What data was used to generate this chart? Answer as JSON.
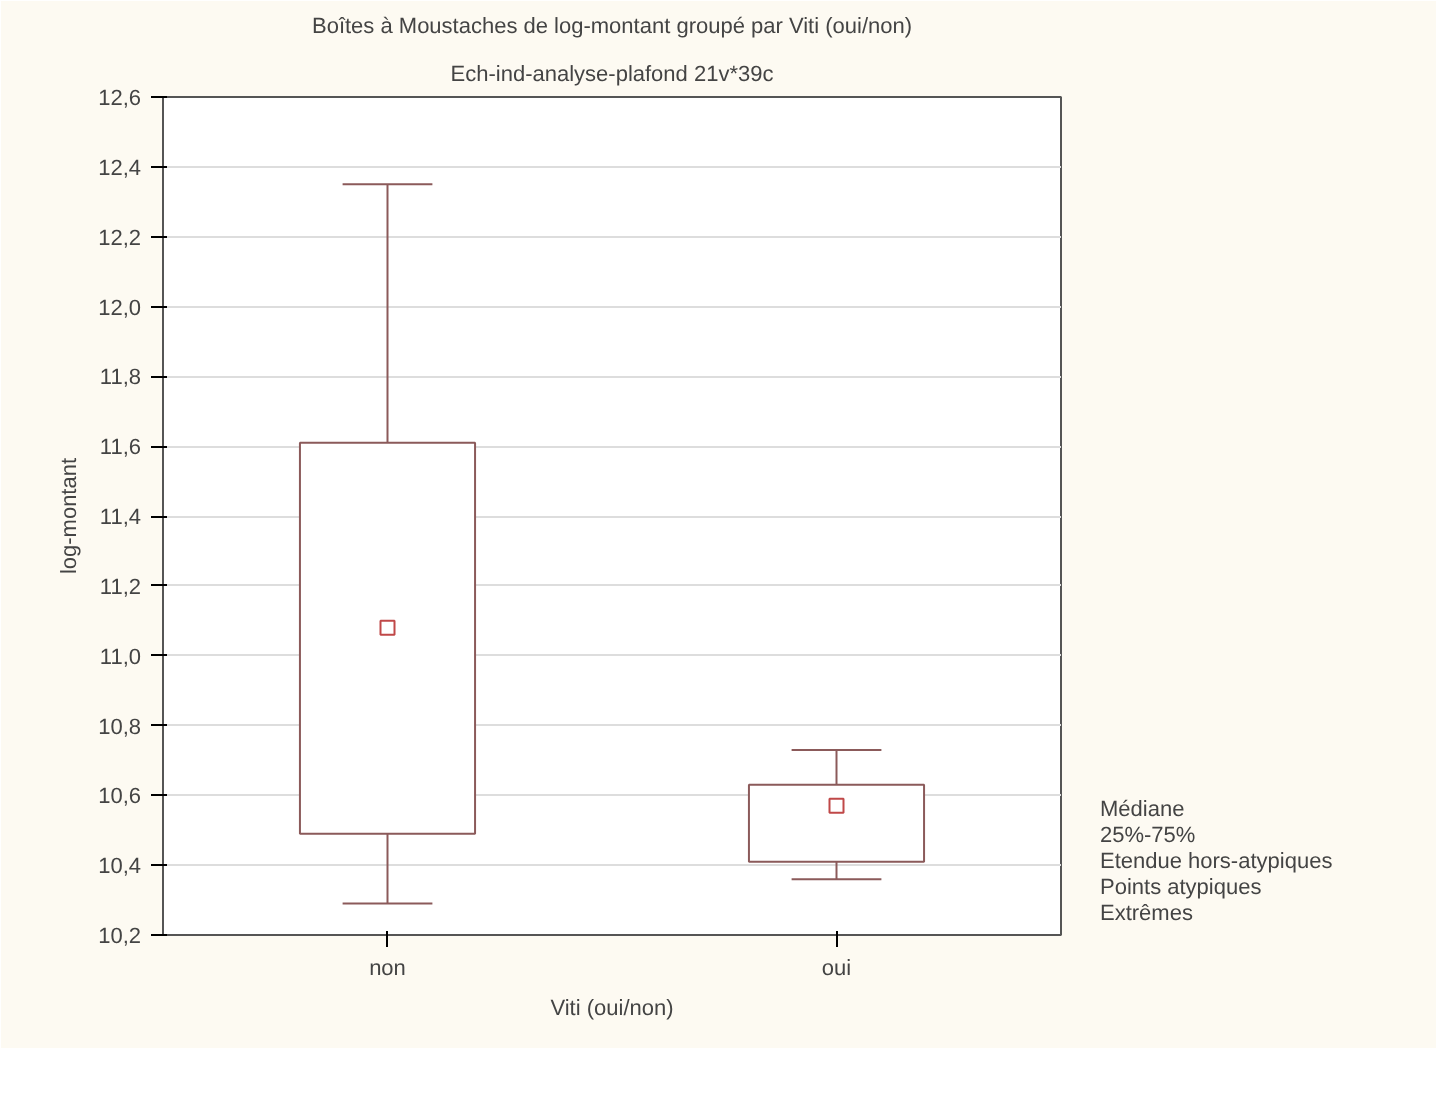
{
  "chart_data": {
    "type": "box",
    "title": "Boîtes à Moustaches de log-montant groupé par Viti (oui/non)",
    "subtitle": "Ech-ind-analyse-plafond 21v*39c",
    "xlabel": "Viti (oui/non)",
    "ylabel": "log-montant",
    "categories": [
      "non",
      "oui"
    ],
    "boxes": [
      {
        "low": 10.29,
        "q1": 10.49,
        "median": 11.08,
        "q3": 11.61,
        "high": 12.35
      },
      {
        "low": 10.36,
        "q1": 10.41,
        "median": 10.57,
        "q3": 10.63,
        "high": 10.73
      }
    ],
    "color": "#8b5a5a",
    "marker": "square",
    "grid": "y",
    "ylim": [
      10.2,
      12.6
    ],
    "yticks": [
      {
        "value": 10.2,
        "label": "10,2"
      },
      {
        "value": 10.4,
        "label": "10,4"
      },
      {
        "value": 10.6,
        "label": "10,6"
      },
      {
        "value": 10.8,
        "label": "10,8"
      },
      {
        "value": 11.0,
        "label": "11,0"
      },
      {
        "value": 11.2,
        "label": "11,2"
      },
      {
        "value": 11.4,
        "label": "11,4"
      },
      {
        "value": 11.6,
        "label": "11,6"
      },
      {
        "value": 11.8,
        "label": "11,8"
      },
      {
        "value": 12.0,
        "label": "12,0"
      },
      {
        "value": 12.2,
        "label": "12,2"
      },
      {
        "value": 12.4,
        "label": "12,4"
      },
      {
        "value": 12.6,
        "label": "12,6"
      }
    ],
    "annotations": [
      "Médiane",
      "25%-75%",
      "Etendue hors-atypiques",
      "Points atypiques",
      "Extrêmes"
    ]
  }
}
